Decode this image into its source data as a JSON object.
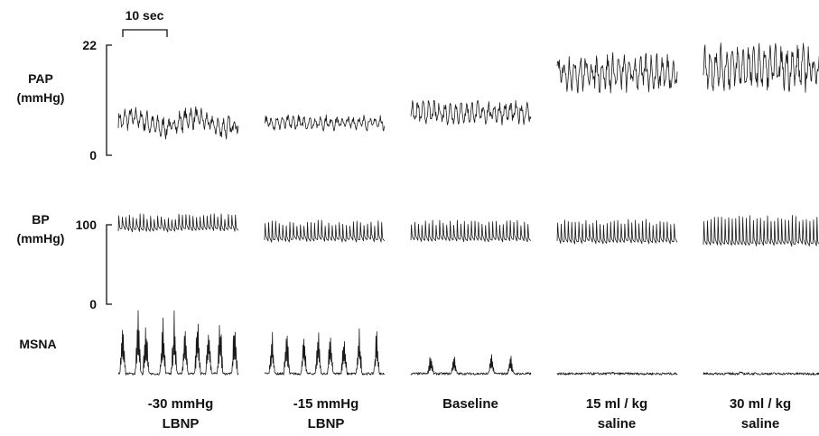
{
  "chart_data": {
    "type": "line",
    "scale_bar": {
      "label": "10 sec",
      "seconds": 10
    },
    "rows": [
      {
        "id": "pap",
        "name": "PAP",
        "unit": "(mmHg)",
        "ticks": [
          {
            "value": 22,
            "label": "22"
          },
          {
            "value": 0,
            "label": "0"
          }
        ],
        "ylim": [
          0,
          22
        ]
      },
      {
        "id": "bp",
        "name": "BP",
        "unit": "(mmHg)",
        "ticks": [
          {
            "value": 100,
            "label": "100"
          },
          {
            "value": 0,
            "label": "0"
          }
        ],
        "ylim": [
          0,
          130
        ]
      },
      {
        "id": "msna",
        "name": "MSNA",
        "unit": "",
        "ticks": [],
        "ylim": [
          0,
          1
        ]
      }
    ],
    "conditions": [
      {
        "line1": "-30 mmHg",
        "line2": "LBNP",
        "pap_mean": 6.5,
        "pap_amp": 1.5,
        "bp_diastolic": 93,
        "bp_systolic": 110,
        "msna_bursts": 10,
        "msna_peak": 0.85
      },
      {
        "line1": "-15 mmHg",
        "line2": "LBNP",
        "pap_mean": 6.5,
        "pap_amp": 1.0,
        "bp_diastolic": 80,
        "bp_systolic": 102,
        "msna_bursts": 8,
        "msna_peak": 0.65
      },
      {
        "line1": "Baseline",
        "line2": "",
        "pap_mean": 8.5,
        "pap_amp": 1.5,
        "bp_diastolic": 80,
        "bp_systolic": 102,
        "msna_bursts": 4,
        "msna_peak": 0.3
      },
      {
        "line1": "15 ml / kg",
        "line2": "saline",
        "pap_mean": 16.5,
        "pap_amp": 2.5,
        "bp_diastolic": 78,
        "bp_systolic": 103,
        "msna_bursts": 1,
        "msna_peak": 0.03
      },
      {
        "line1": "30 ml / kg",
        "line2": "saline",
        "pap_mean": 17.5,
        "pap_amp": 3.0,
        "bp_diastolic": 75,
        "bp_systolic": 108,
        "msna_bursts": 1,
        "msna_peak": 0.02
      }
    ]
  }
}
